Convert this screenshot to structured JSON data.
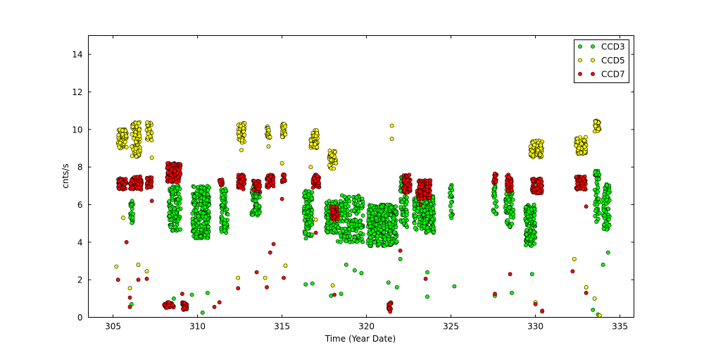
{
  "chart_data": {
    "type": "scatter",
    "title": "",
    "xlabel": "Time (Year Date)",
    "ylabel": "cnts/s",
    "xlim": [
      303.54,
      335.83
    ],
    "ylim": [
      0,
      15
    ],
    "xticks": [
      305,
      310,
      315,
      320,
      325,
      330,
      335
    ],
    "yticks": [
      0,
      2,
      4,
      6,
      8,
      10,
      12,
      14
    ],
    "grid": false,
    "legend_position": "top-right",
    "note": "clusters are dense groups of points given as [x_min, x_max, y_min, y_max, count]; points are individual [x, y]",
    "series": [
      {
        "name": "CCD3",
        "color": "#00ff00",
        "clusters": [
          [
            306.0,
            306.2,
            4.9,
            6.2,
            25
          ],
          [
            308.3,
            309.0,
            4.6,
            7.0,
            110
          ],
          [
            309.7,
            310.7,
            4.2,
            7.0,
            220
          ],
          [
            311.4,
            311.8,
            4.5,
            7.0,
            60
          ],
          [
            313.2,
            313.7,
            5.4,
            7.0,
            60
          ],
          [
            316.3,
            316.8,
            4.2,
            6.8,
            90
          ],
          [
            317.6,
            318.3,
            4.5,
            6.2,
            90
          ],
          [
            318.3,
            319.8,
            4.0,
            6.5,
            170
          ],
          [
            320.1,
            321.8,
            3.8,
            6.0,
            320
          ],
          [
            322.0,
            322.4,
            4.8,
            7.5,
            70
          ],
          [
            322.8,
            324.0,
            4.5,
            6.5,
            170
          ],
          [
            324.9,
            325.1,
            5.2,
            7.1,
            20
          ],
          [
            327.5,
            327.7,
            5.5,
            7.8,
            25
          ],
          [
            328.2,
            328.7,
            4.8,
            6.8,
            60
          ],
          [
            329.4,
            330.0,
            3.8,
            6.0,
            110
          ],
          [
            333.5,
            333.8,
            5.0,
            7.9,
            40
          ],
          [
            334.0,
            334.4,
            4.6,
            7.1,
            60
          ]
        ],
        "points": [
          [
            306.1,
            0.7
          ],
          [
            308.6,
            1.0
          ],
          [
            309.67,
            1.2
          ],
          [
            310.3,
            0.25
          ],
          [
            310.6,
            1.3
          ],
          [
            316.4,
            1.75
          ],
          [
            316.8,
            1.8
          ],
          [
            317.9,
            1.15
          ],
          [
            318.5,
            1.25
          ],
          [
            318.8,
            2.8
          ],
          [
            319.3,
            2.5
          ],
          [
            319.7,
            2.35
          ],
          [
            321.3,
            1.85
          ],
          [
            321.8,
            1.6
          ],
          [
            322.0,
            3.1
          ],
          [
            323.6,
            1.1
          ],
          [
            323.6,
            2.4
          ],
          [
            325.2,
            1.65
          ],
          [
            327.6,
            1.15
          ],
          [
            328.6,
            1.3
          ],
          [
            329.8,
            2.3
          ],
          [
            333.4,
            0.4
          ],
          [
            333.7,
            0.15
          ],
          [
            334.0,
            2.8
          ],
          [
            334.3,
            3.45
          ]
        ]
      },
      {
        "name": "CCD5",
        "color": "#ffff00",
        "clusters": [
          [
            305.3,
            305.8,
            9.0,
            10.0,
            60
          ],
          [
            306.1,
            306.6,
            8.5,
            10.4,
            70
          ],
          [
            307.0,
            307.3,
            9.4,
            10.4,
            30
          ],
          [
            312.4,
            312.8,
            9.3,
            10.4,
            40
          ],
          [
            314.1,
            314.3,
            9.5,
            10.2,
            25
          ],
          [
            315.0,
            315.2,
            9.6,
            10.3,
            25
          ],
          [
            316.7,
            317.1,
            9.0,
            10.0,
            45
          ],
          [
            317.8,
            318.2,
            7.9,
            8.9,
            35
          ],
          [
            329.7,
            330.4,
            8.5,
            9.4,
            70
          ],
          [
            332.4,
            333.0,
            8.7,
            9.6,
            60
          ],
          [
            333.5,
            333.8,
            9.9,
            10.5,
            25
          ]
        ],
        "points": [
          [
            305.2,
            2.7
          ],
          [
            305.6,
            5.3
          ],
          [
            306.0,
            1.55
          ],
          [
            306.5,
            2.8
          ],
          [
            307.0,
            2.45
          ],
          [
            307.3,
            8.5
          ],
          [
            312.4,
            2.1
          ],
          [
            312.6,
            8.9
          ],
          [
            314.0,
            2.1
          ],
          [
            314.2,
            9.1
          ],
          [
            315.0,
            8.2
          ],
          [
            315.2,
            2.75
          ],
          [
            316.7,
            8.0
          ],
          [
            317.0,
            5.2
          ],
          [
            318.0,
            1.7
          ],
          [
            321.5,
            10.2
          ],
          [
            321.5,
            9.5
          ],
          [
            330.0,
            0.8
          ],
          [
            330.4,
            0.3
          ],
          [
            332.3,
            3.1
          ],
          [
            333.0,
            1.6
          ],
          [
            333.5,
            1.0
          ],
          [
            333.8,
            0.1
          ]
        ]
      },
      {
        "name": "CCD7",
        "color": "#ff0000",
        "clusters": [
          [
            305.3,
            305.8,
            6.8,
            7.4,
            50
          ],
          [
            306.0,
            306.7,
            6.8,
            7.5,
            70
          ],
          [
            307.0,
            307.3,
            6.9,
            7.5,
            30
          ],
          [
            308.2,
            309.0,
            7.2,
            8.2,
            150
          ],
          [
            308.0,
            308.6,
            0.5,
            0.8,
            30
          ],
          [
            309.1,
            309.4,
            0.4,
            0.8,
            20
          ],
          [
            311.3,
            311.5,
            7.0,
            7.5,
            12
          ],
          [
            312.4,
            312.8,
            6.8,
            7.6,
            40
          ],
          [
            313.3,
            313.7,
            6.7,
            7.3,
            35
          ],
          [
            314.1,
            314.5,
            6.9,
            7.6,
            40
          ],
          [
            315.0,
            315.2,
            7.2,
            7.6,
            15
          ],
          [
            316.8,
            317.2,
            6.9,
            7.6,
            40
          ],
          [
            317.9,
            318.3,
            5.2,
            5.9,
            40
          ],
          [
            321.3,
            321.5,
            0.4,
            0.8,
            12
          ],
          [
            322.2,
            322.6,
            6.6,
            7.6,
            50
          ],
          [
            323.0,
            323.8,
            6.3,
            7.3,
            100
          ],
          [
            327.5,
            327.7,
            7.1,
            7.7,
            15
          ],
          [
            328.3,
            328.6,
            6.7,
            7.6,
            30
          ],
          [
            329.8,
            330.4,
            6.6,
            7.4,
            70
          ],
          [
            332.4,
            333.0,
            6.8,
            7.5,
            60
          ]
        ],
        "points": [
          [
            305.3,
            2.0
          ],
          [
            305.8,
            4.0
          ],
          [
            306.0,
            1.05
          ],
          [
            306.0,
            0.55
          ],
          [
            306.5,
            2.0
          ],
          [
            307.0,
            2.05
          ],
          [
            307.3,
            6.2
          ],
          [
            309.1,
            1.25
          ],
          [
            311.0,
            0.55
          ],
          [
            311.3,
            0.8
          ],
          [
            312.4,
            1.55
          ],
          [
            313.5,
            2.4
          ],
          [
            314.1,
            1.6
          ],
          [
            314.3,
            3.45
          ],
          [
            314.5,
            3.9
          ],
          [
            315.1,
            2.1
          ],
          [
            315.0,
            6.3
          ],
          [
            317.0,
            4.5
          ],
          [
            318.1,
            1.2
          ],
          [
            321.4,
            0.3
          ],
          [
            322.0,
            3.55
          ],
          [
            323.5,
            2.05
          ],
          [
            323.2,
            6.0
          ],
          [
            327.6,
            1.25
          ],
          [
            328.5,
            2.3
          ],
          [
            330.0,
            0.7
          ],
          [
            330.4,
            0.35
          ],
          [
            332.2,
            2.45
          ],
          [
            333.0,
            1.3
          ],
          [
            333.0,
            5.9
          ]
        ]
      }
    ]
  }
}
